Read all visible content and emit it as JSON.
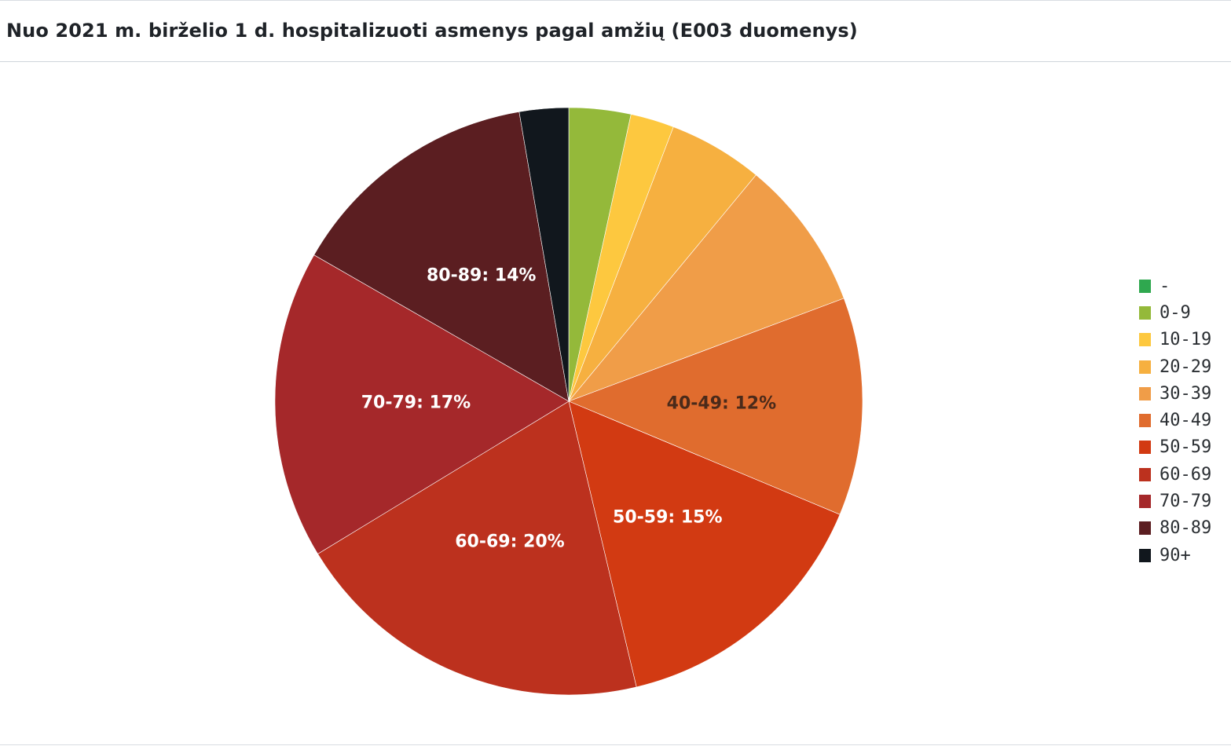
{
  "panel": {
    "title": "Nuo 2021 m. birželio 1 d. hospitalizuoti asmenys pagal amžių (E003 duomenys)"
  },
  "chart_data": {
    "type": "pie",
    "title": "Nuo 2021 m. birželio 1 d. hospitalizuoti asmenys pagal amžių (E003 duomenys)",
    "legend_position": "right",
    "categories": [
      "-",
      "0-9",
      "10-19",
      "20-29",
      "30-39",
      "40-49",
      "50-59",
      "60-69",
      "70-79",
      "80-89",
      "90+"
    ],
    "values": [
      0,
      3.4,
      2.4,
      5.2,
      8.3,
      12,
      15,
      20,
      17,
      14,
      2.7
    ],
    "colors": [
      "#2fa84f",
      "#94b93a",
      "#fdc83f",
      "#f6b040",
      "#f09d48",
      "#e06c2e",
      "#d23a12",
      "#bc311e",
      "#a5282a",
      "#5b1e21",
      "#11171d"
    ],
    "slice_labels": [
      {
        "category": "40-49",
        "text": "40-49: 12%",
        "color": "#4a2a1a"
      },
      {
        "category": "50-59",
        "text": "50-59: 15%",
        "color": "#ffffff"
      },
      {
        "category": "60-69",
        "text": "60-69: 20%",
        "color": "#ffffff"
      },
      {
        "category": "70-79",
        "text": "70-79: 17%",
        "color": "#ffffff"
      },
      {
        "category": "80-89",
        "text": "80-89: 14%",
        "color": "#ffffff"
      }
    ]
  }
}
